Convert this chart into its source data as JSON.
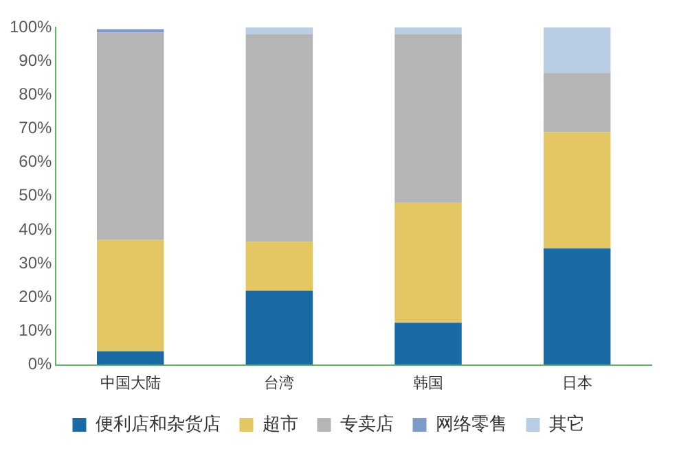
{
  "chart_data": {
    "type": "bar",
    "stacked": true,
    "categories": [
      "中国大陆",
      "台湾",
      "韩国",
      "日本"
    ],
    "series": [
      {
        "name": "便利店和杂货店",
        "color": "#1a6aa5",
        "values": [
          4,
          22,
          12.5,
          34.5
        ]
      },
      {
        "name": "超市",
        "color": "#e4c763",
        "values": [
          33,
          14.5,
          35.5,
          34.5
        ]
      },
      {
        "name": "专卖店",
        "color": "#b5b5b5",
        "values": [
          61.5,
          61.5,
          50,
          17.5
        ]
      },
      {
        "name": "网络零售",
        "color": "#7d9bc9",
        "values": [
          1,
          0,
          0,
          0
        ]
      },
      {
        "name": "其它",
        "color": "#b9cde5",
        "values": [
          null,
          2,
          2,
          13.5
        ]
      }
    ],
    "ylim": [
      0,
      100
    ],
    "yticks": [
      {
        "value": 0,
        "label": "0%"
      },
      {
        "value": 10,
        "label": "10%"
      },
      {
        "value": 20,
        "label": "20%"
      },
      {
        "value": 30,
        "label": "30%"
      },
      {
        "value": 40,
        "label": "40%"
      },
      {
        "value": 50,
        "label": "50%"
      },
      {
        "value": 60,
        "label": "60%"
      },
      {
        "value": 70,
        "label": "70%"
      },
      {
        "value": 80,
        "label": "80%"
      },
      {
        "value": 90,
        "label": "90%"
      },
      {
        "value": 100,
        "label": "100%"
      }
    ],
    "grid": false,
    "legend": "bottom"
  }
}
